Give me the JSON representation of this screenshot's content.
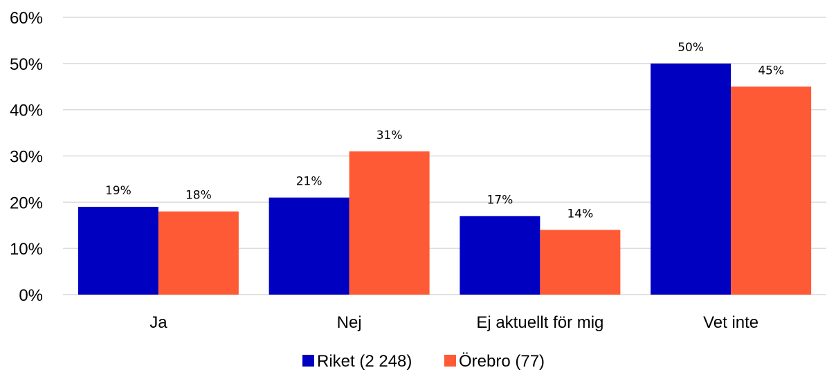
{
  "chart_data": {
    "type": "bar",
    "categories": [
      "Ja",
      "Nej",
      "Ej aktuellt för mig",
      "Vet inte"
    ],
    "series": [
      {
        "name": "Riket (2 248)",
        "color": "#0000c0",
        "values": [
          19,
          21,
          17,
          50
        ],
        "labels": [
          "19%",
          "21%",
          "17%",
          "50%"
        ]
      },
      {
        "name": "Örebro (77)",
        "color": "#ff5a36",
        "values": [
          18,
          31,
          14,
          45
        ],
        "labels": [
          "18%",
          "31%",
          "14%",
          "45%"
        ]
      }
    ],
    "ylim": [
      0,
      60
    ],
    "yticks": [
      0,
      10,
      20,
      30,
      40,
      50,
      60
    ],
    "ytick_labels": [
      "0%",
      "10%",
      "20%",
      "30%",
      "40%",
      "50%",
      "60%"
    ],
    "grid": true,
    "legend": "bottom",
    "title": "",
    "xlabel": "",
    "ylabel": ""
  }
}
